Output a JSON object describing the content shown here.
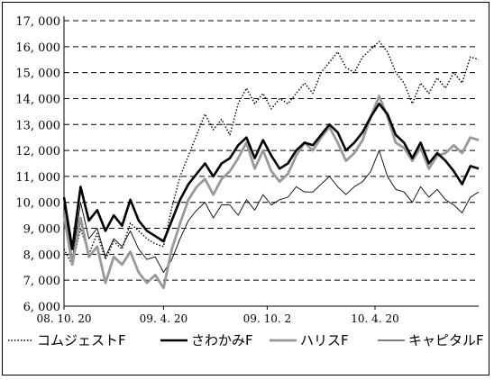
{
  "chart_data": {
    "type": "line",
    "title": "",
    "xlabel": "",
    "ylabel": "",
    "ylim": [
      6000,
      17000
    ],
    "y_ticks": [
      6000,
      7000,
      8000,
      9000,
      10000,
      11000,
      12000,
      13000,
      14000,
      15000,
      16000,
      17000
    ],
    "y_tick_labels": [
      "6, 000",
      "7, 000",
      "8, 000",
      "9, 000",
      "10, 000",
      "11, 000",
      "12, 000",
      "13, 000",
      "14, 000",
      "15, 000",
      "16, 000",
      "17, 000"
    ],
    "x_tick_labels": [
      "08. 10. 20",
      "09. 4. 20",
      "09. 10. 2",
      "10. 4. 20"
    ],
    "x_tick_positions": [
      0,
      0.24,
      0.49,
      0.75
    ],
    "grid": "horizontal-dashed",
    "legend_position": "bottom",
    "series": [
      {
        "name": "コムジェストF",
        "style": "dotted",
        "color": "#000000",
        "x": [
          0,
          0.02,
          0.04,
          0.06,
          0.08,
          0.1,
          0.12,
          0.14,
          0.16,
          0.18,
          0.2,
          0.22,
          0.24,
          0.26,
          0.28,
          0.3,
          0.32,
          0.34,
          0.36,
          0.38,
          0.4,
          0.42,
          0.44,
          0.46,
          0.48,
          0.5,
          0.52,
          0.54,
          0.56,
          0.58,
          0.6,
          0.62,
          0.64,
          0.66,
          0.68,
          0.7,
          0.72,
          0.74,
          0.76,
          0.78,
          0.8,
          0.82,
          0.84,
          0.86,
          0.88,
          0.9,
          0.92,
          0.94,
          0.96,
          0.98,
          1.0
        ],
        "y": [
          8200,
          7600,
          9000,
          8000,
          8800,
          7800,
          8500,
          8200,
          9200,
          8900,
          8600,
          8400,
          8300,
          9800,
          11000,
          11800,
          12600,
          13400,
          12800,
          13200,
          12600,
          13800,
          14400,
          13800,
          14200,
          13600,
          14000,
          13800,
          14200,
          14600,
          14200,
          15000,
          15400,
          15800,
          15200,
          15000,
          15600,
          15900,
          16200,
          15800,
          15000,
          14600,
          13800,
          14600,
          14200,
          14800,
          14400,
          15000,
          14600,
          15600,
          15500
        ]
      },
      {
        "name": "さわかみF",
        "style": "thick",
        "color": "#000000",
        "x": [
          0,
          0.02,
          0.04,
          0.06,
          0.08,
          0.1,
          0.12,
          0.14,
          0.16,
          0.18,
          0.2,
          0.22,
          0.24,
          0.26,
          0.28,
          0.3,
          0.32,
          0.34,
          0.36,
          0.38,
          0.4,
          0.42,
          0.44,
          0.46,
          0.48,
          0.5,
          0.52,
          0.54,
          0.56,
          0.58,
          0.6,
          0.62,
          0.64,
          0.66,
          0.68,
          0.7,
          0.72,
          0.74,
          0.76,
          0.78,
          0.8,
          0.82,
          0.84,
          0.86,
          0.88,
          0.9,
          0.92,
          0.94,
          0.96,
          0.98,
          1.0
        ],
        "y": [
          10200,
          8200,
          10600,
          9300,
          9700,
          8900,
          9500,
          9100,
          10100,
          9300,
          8900,
          8700,
          8500,
          9300,
          10100,
          10700,
          11100,
          11500,
          11000,
          11500,
          11700,
          12200,
          12500,
          11700,
          12400,
          11800,
          11300,
          11500,
          12000,
          12300,
          12200,
          12600,
          13000,
          12700,
          12000,
          12300,
          12700,
          13300,
          13800,
          13400,
          12600,
          12300,
          11700,
          12300,
          11500,
          11900,
          11600,
          11200,
          10700,
          11400,
          11300
        ]
      },
      {
        "name": "ハリスF",
        "style": "thick-gray",
        "color": "#999999",
        "x": [
          0,
          0.02,
          0.04,
          0.06,
          0.08,
          0.1,
          0.12,
          0.14,
          0.16,
          0.18,
          0.2,
          0.22,
          0.24,
          0.26,
          0.28,
          0.3,
          0.32,
          0.34,
          0.36,
          0.38,
          0.4,
          0.42,
          0.44,
          0.46,
          0.48,
          0.5,
          0.52,
          0.54,
          0.56,
          0.58,
          0.6,
          0.62,
          0.64,
          0.66,
          0.68,
          0.7,
          0.72,
          0.74,
          0.76,
          0.78,
          0.8,
          0.82,
          0.84,
          0.86,
          0.88,
          0.9,
          0.92,
          0.94,
          0.96,
          0.98,
          1.0
        ],
        "y": [
          9500,
          7600,
          9400,
          7900,
          8300,
          6900,
          7900,
          7600,
          8100,
          7300,
          6900,
          7200,
          6700,
          8200,
          9200,
          10100,
          10600,
          10900,
          10300,
          10900,
          11200,
          11700,
          12300,
          11300,
          12000,
          11200,
          10800,
          11100,
          11800,
          12300,
          12000,
          12500,
          12900,
          12300,
          11600,
          11900,
          12400,
          13300,
          14100,
          13300,
          12300,
          12100,
          11600,
          12100,
          11300,
          11800,
          11900,
          12200,
          11900,
          12500,
          12400
        ]
      },
      {
        "name": "キャピタルF",
        "style": "thin",
        "color": "#000000",
        "x": [
          0,
          0.02,
          0.04,
          0.06,
          0.08,
          0.1,
          0.12,
          0.14,
          0.16,
          0.18,
          0.2,
          0.22,
          0.24,
          0.26,
          0.28,
          0.3,
          0.32,
          0.34,
          0.36,
          0.38,
          0.4,
          0.42,
          0.44,
          0.46,
          0.48,
          0.5,
          0.52,
          0.54,
          0.56,
          0.58,
          0.6,
          0.62,
          0.64,
          0.66,
          0.68,
          0.7,
          0.72,
          0.74,
          0.76,
          0.78,
          0.8,
          0.82,
          0.84,
          0.86,
          0.88,
          0.9,
          0.92,
          0.94,
          0.96,
          0.98,
          1.0
        ],
        "y": [
          10000,
          7800,
          10000,
          8600,
          9000,
          7900,
          8600,
          8300,
          8900,
          8200,
          7800,
          7900,
          7300,
          7800,
          8600,
          9300,
          9700,
          10000,
          9400,
          9900,
          9900,
          9500,
          10100,
          9700,
          10300,
          9900,
          10100,
          10200,
          10600,
          10400,
          10400,
          10700,
          11000,
          10600,
          10300,
          10600,
          10800,
          11200,
          12000,
          11000,
          10500,
          10400,
          10000,
          10600,
          10200,
          10500,
          10100,
          9900,
          9600,
          10200,
          10400
        ]
      }
    ]
  }
}
